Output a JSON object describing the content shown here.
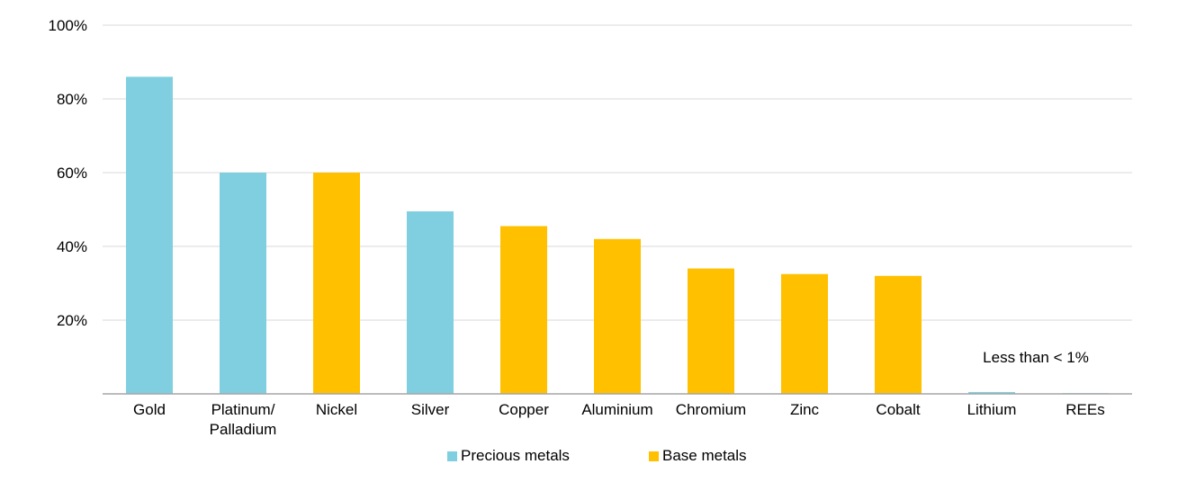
{
  "chart_data": {
    "type": "bar",
    "categories": [
      "Gold",
      "Platinum/\nPalladium",
      "Nickel",
      "Silver",
      "Copper",
      "Aluminium",
      "Chromium",
      "Zinc",
      "Cobalt",
      "Lithium",
      "REEs"
    ],
    "values": [
      86,
      60,
      60,
      49.5,
      45.5,
      42,
      34,
      32.5,
      32,
      0.5,
      0.2
    ],
    "groups": [
      "Precious metals",
      "Precious metals",
      "Base metals",
      "Precious metals",
      "Base metals",
      "Base metals",
      "Base metals",
      "Base metals",
      "Base metals",
      "Precious metals",
      "Precious metals"
    ],
    "yticks": [
      "20%",
      "40%",
      "60%",
      "80%",
      "100%"
    ],
    "ytick_values": [
      20,
      40,
      60,
      80,
      100
    ],
    "ylim": [
      0,
      100
    ],
    "grid": true,
    "annotation": "Less than < 1%",
    "legend": {
      "placement": "bottom-center",
      "items": [
        {
          "label": "Precious metals",
          "color": "#7FCFE0"
        },
        {
          "label": "Base metals",
          "color": "#FFC000"
        }
      ]
    },
    "colors": {
      "Precious metals": "#7FCFE0",
      "Base metals": "#FFC000",
      "grid": "#D9D9D9",
      "axis": "#A6A6A6"
    }
  }
}
